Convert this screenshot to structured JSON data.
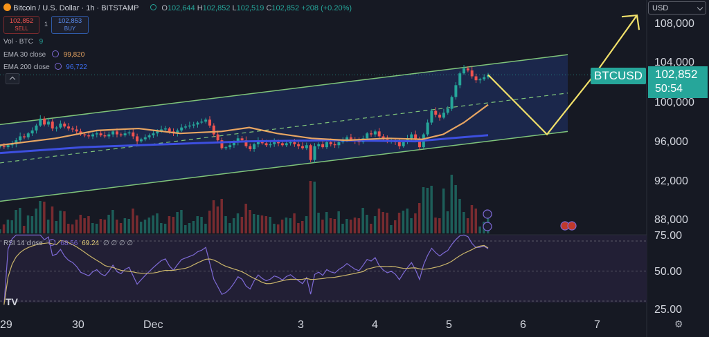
{
  "header": {
    "symbol_title": "Bitcoin / U.S. Dollar · 1h · BITSTAMP",
    "ohlc": {
      "o_label": "O",
      "o": "102,644",
      "h_label": "H",
      "h": "102,852",
      "l_label": "L",
      "l": "102,519",
      "c_label": "C",
      "c": "102,852",
      "change": "+208 (+0.20%)"
    },
    "sell_price": "102,852",
    "sell_label": "SELL",
    "spread": "1",
    "buy_price": "102,853",
    "buy_label": "BUY"
  },
  "indicators": {
    "vol_label": "Vol · BTC",
    "vol_value": "9",
    "ema30_label": "EMA 30 close",
    "ema30_value": "99,820",
    "ema200_label": "EMA 200 close",
    "ema200_value": "96,722",
    "rsi_label": "RSI 14 close",
    "rsi_value": "68.56",
    "rsi_ma_value": "69.24",
    "rsi_placeholders": "∅ ∅ ∅ ∅"
  },
  "currency_select": "USD",
  "last_price": {
    "symbol": "BTCUSD",
    "price": "102,852",
    "countdown": "50:54"
  },
  "colors": {
    "bg": "#161923",
    "channel_fill": "#1c2a52",
    "channel_line": "#7fc47a",
    "ema30": "#e8a562",
    "ema200": "#3d4fe0",
    "up": "#26a69a",
    "down": "#ef5350",
    "projection": "#f1e06a",
    "rsi_line": "#7e6ad6",
    "rsi_ma": "#c9b46a"
  },
  "chart_data": {
    "type": "candlestick",
    "x_ticks": [
      "29",
      "30",
      "Dec",
      "3",
      "4",
      "5",
      "6",
      "7"
    ],
    "y_ticks": [
      "108,000",
      "104,000",
      "100,000",
      "96,000",
      "92,000",
      "88,000"
    ],
    "ylim": [
      86500,
      110000
    ],
    "closes": [
      95600,
      95500,
      95700,
      95800,
      96200,
      96600,
      96500,
      96900,
      97200,
      97700,
      98400,
      97800,
      98100,
      97400,
      97500,
      97900,
      97600,
      97400,
      97300,
      97100,
      96800,
      96700,
      96600,
      96800,
      96900,
      96700,
      96600,
      96800,
      97100,
      96800,
      96700,
      96900,
      97000,
      96600,
      96100,
      96300,
      96500,
      96700,
      96900,
      97100,
      97300,
      97400,
      97100,
      96900,
      97200,
      97500,
      97600,
      97700,
      97800,
      98000,
      98100,
      98300,
      97700,
      96800,
      96200,
      95400,
      95500,
      95700,
      96000,
      96400,
      96200,
      95600,
      95300,
      95800,
      96200,
      95900,
      95700,
      95800,
      96000,
      95900,
      95700,
      95900,
      96000,
      95800,
      95600,
      95400,
      95700,
      94200,
      95600,
      95800,
      95500,
      96000,
      95800,
      95700,
      96000,
      96200,
      96500,
      96300,
      96100,
      96000,
      96400,
      96900,
      96800,
      97100,
      96600,
      96300,
      96100,
      96200,
      96000,
      95600,
      96000,
      96400,
      96800,
      96300,
      95500,
      96800,
      98000,
      99200,
      98800,
      98500,
      99000,
      99400,
      100600,
      101800,
      103000,
      103500,
      103300,
      102700,
      102300,
      102400,
      102600,
      102852
    ],
    "candle_start_x": 0,
    "candle_end_x": 705,
    "x_tick_positions_data": {
      "29": 0,
      "30": 1,
      "Dec": 2,
      "3": 3,
      "4": 4,
      "5": 5,
      "6": 6,
      "7": 7
    },
    "ema30": {
      "name": "EMA 30 close",
      "points": [
        [
          0,
          95700
        ],
        [
          80,
          96400
        ],
        [
          140,
          97200
        ],
        [
          200,
          97400
        ],
        [
          260,
          96900
        ],
        [
          320,
          97100
        ],
        [
          360,
          97500
        ],
        [
          400,
          96900
        ],
        [
          450,
          96400
        ],
        [
          500,
          96200
        ],
        [
          560,
          96400
        ],
        [
          610,
          96300
        ],
        [
          640,
          96800
        ],
        [
          670,
          98000
        ],
        [
          705,
          99820
        ]
      ]
    },
    "ema200": {
      "name": "EMA 200 close",
      "points": [
        [
          0,
          94900
        ],
        [
          120,
          95500
        ],
        [
          240,
          95800
        ],
        [
          360,
          96100
        ],
        [
          480,
          96200
        ],
        [
          600,
          96100
        ],
        [
          650,
          96400
        ],
        [
          705,
          96722
        ]
      ]
    },
    "channel": {
      "upper": [
        [
          0,
          97800
        ],
        [
          820,
          104900
        ]
      ],
      "lower": [
        [
          0,
          90000
        ],
        [
          820,
          97100
        ]
      ],
      "mid": [
        [
          0,
          93900
        ],
        [
          820,
          101000
        ]
      ]
    },
    "projection": [
      [
        705,
        102852
      ],
      [
        790,
        96800
      ],
      [
        860,
        103000
      ],
      [
        920,
        108900
      ]
    ],
    "rsi": {
      "ylim": [
        20,
        80
      ],
      "levels": [
        75,
        50,
        25
      ],
      "last": 68.56,
      "ma_last": 69.24
    }
  },
  "rsi_axis": [
    "75.00",
    "50.00",
    "25.00"
  ]
}
